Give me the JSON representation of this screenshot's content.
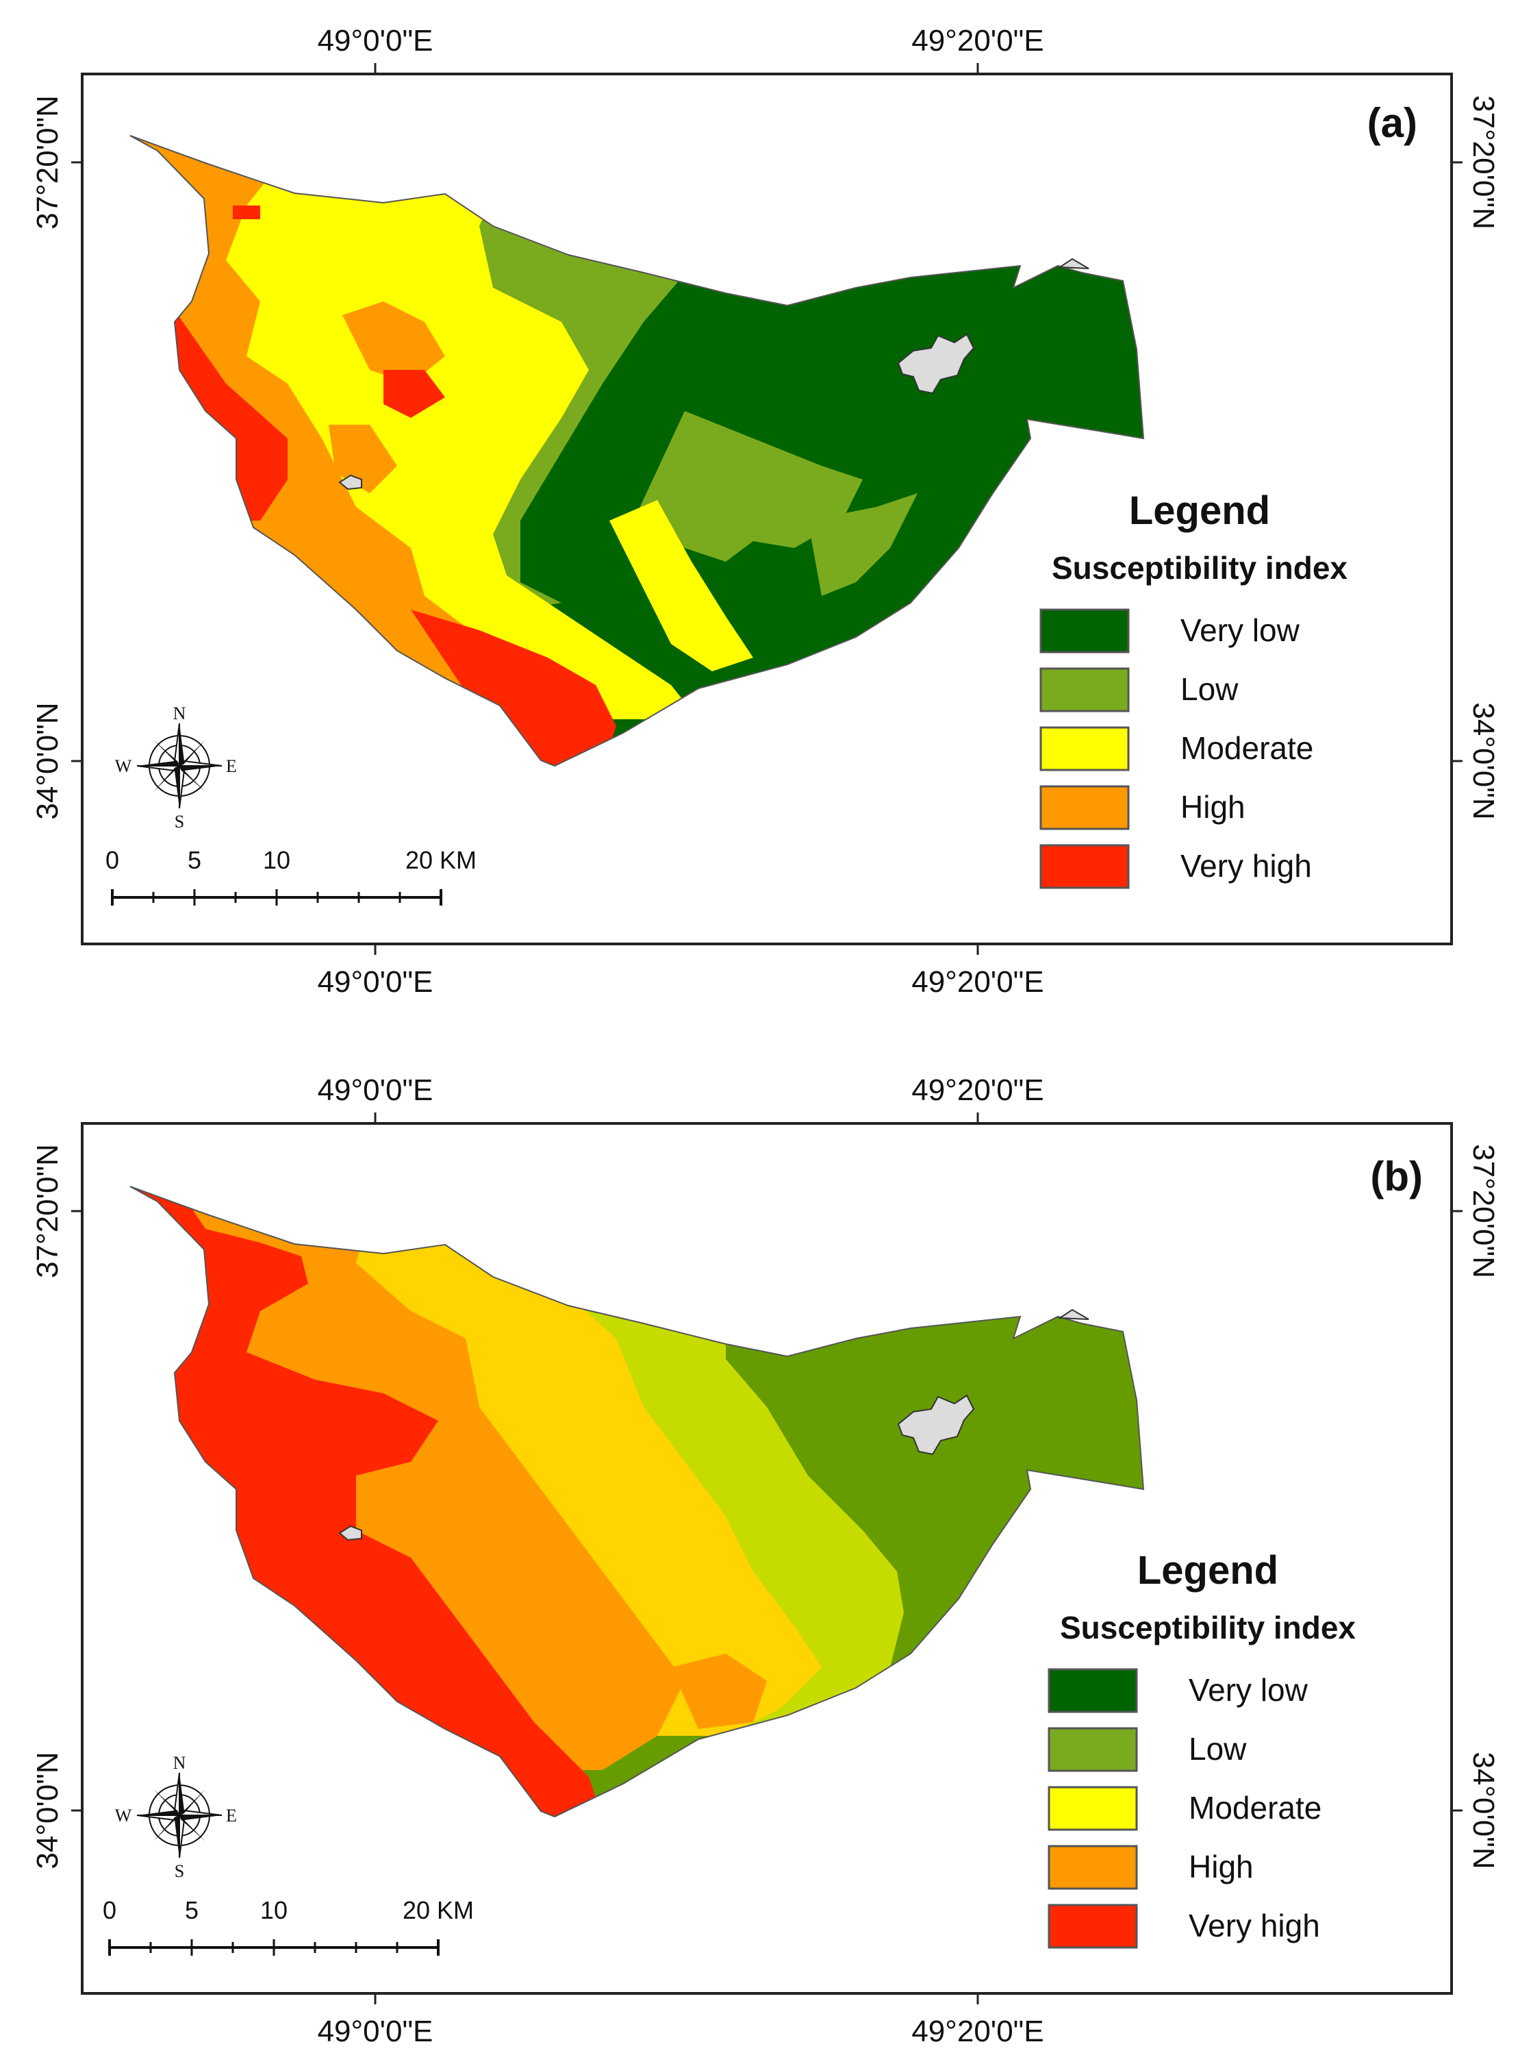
{
  "panels": [
    {
      "id": "a",
      "label": "(a)",
      "lon_top": [
        "49°0'0\"E",
        "49°20'0\"E"
      ],
      "lon_bottom": [
        "49°0'0\"E",
        "49°20'0\"E"
      ],
      "lat_left": [
        "37°20'0\"N",
        "34°0'0\"N"
      ],
      "lat_right": [
        "37°20'0\"N",
        "34°0'0\"N"
      ],
      "legend": {
        "title": "Legend",
        "subtitle": "Susceptibility index",
        "items": [
          {
            "label": "Very low",
            "color": "#006400"
          },
          {
            "label": "Low",
            "color": "#7aab1e"
          },
          {
            "label": "Moderate",
            "color": "#ffff00"
          },
          {
            "label": "High",
            "color": "#ff9900"
          },
          {
            "label": "Very high",
            "color": "#ff2600"
          }
        ]
      },
      "map_zone_colors": [
        "#ff2600",
        "#ff9900",
        "#ffff00",
        "#7aab1e",
        "#006400"
      ]
    },
    {
      "id": "b",
      "label": "(b)",
      "lon_top": [
        "49°0'0\"E",
        "49°20'0\"E"
      ],
      "lon_bottom": [
        "49°0'0\"E",
        "49°20'0\"E"
      ],
      "lat_left": [
        "37°20'0\"N",
        "34°0'0\"N"
      ],
      "lat_right": [
        "37°20'0\"N",
        "34°0'0\"N"
      ],
      "legend": {
        "title": "Legend",
        "subtitle": "Susceptibility index",
        "items": [
          {
            "label": "Very low",
            "color": "#006400"
          },
          {
            "label": "Low",
            "color": "#7aab1e"
          },
          {
            "label": "Moderate",
            "color": "#ffff00"
          },
          {
            "label": "High",
            "color": "#ff9900"
          },
          {
            "label": "Very high",
            "color": "#ff2600"
          }
        ]
      },
      "map_zone_colors": [
        "#ff2600",
        "#ff9900",
        "#ffd400",
        "#c6dc00",
        "#669c00"
      ]
    }
  ],
  "scale_bar": {
    "labels": [
      "0",
      "5",
      "10",
      "20 KM"
    ]
  },
  "compass": {
    "n": "N",
    "s": "S",
    "e": "E",
    "w": "W"
  }
}
